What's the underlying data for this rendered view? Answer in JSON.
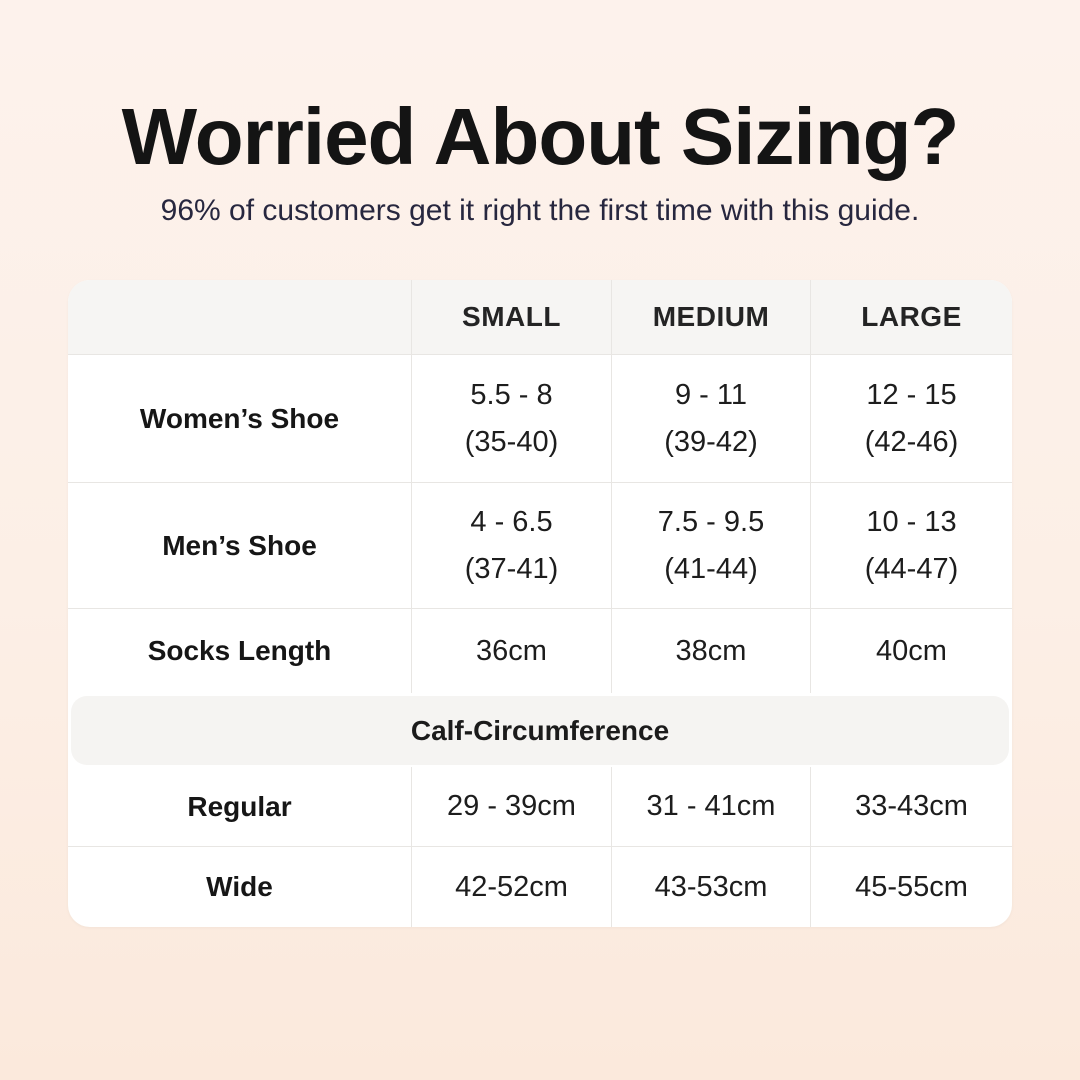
{
  "header": {
    "title": "Worried About Sizing?",
    "subtitle": "96% of customers get it right the first time with this guide."
  },
  "table": {
    "headers": {
      "small": "SMALL",
      "medium": "MEDIUM",
      "large": "LARGE"
    },
    "shoe_rows": [
      {
        "label": "Women’s Shoe",
        "cells": [
          {
            "l1": "5.5 - 8",
            "l2": "(35-40)"
          },
          {
            "l1": "9 - 11",
            "l2": "(39-42)"
          },
          {
            "l1": "12 - 15",
            "l2": "(42-46)"
          }
        ]
      },
      {
        "label": "Men’s Shoe",
        "cells": [
          {
            "l1": "4 - 6.5",
            "l2": "(37-41)"
          },
          {
            "l1": "7.5 - 9.5",
            "l2": "(41-44)"
          },
          {
            "l1": "10 - 13",
            "l2": "(44-47)"
          }
        ]
      }
    ],
    "socks_row": {
      "label": "Socks Length",
      "cells": [
        "36cm",
        "38cm",
        "40cm"
      ]
    },
    "section_title": "Calf-Circumference",
    "calf_rows": [
      {
        "label": "Regular",
        "cells": [
          "29 - 39cm",
          "31 - 41cm",
          "33-43cm"
        ]
      },
      {
        "label": "Wide",
        "cells": [
          "42-52cm",
          "43-53cm",
          "45-55cm"
        ]
      }
    ]
  },
  "chart_data": {
    "type": "table",
    "title": "Worried About Sizing?",
    "subtitle": "96% of customers get it right the first time with this guide.",
    "columns": [
      "",
      "SMALL",
      "MEDIUM",
      "LARGE"
    ],
    "rows": [
      [
        "Women’s Shoe",
        "5.5 - 8 (35-40)",
        "9 - 11 (39-42)",
        "12 - 15 (42-46)"
      ],
      [
        "Men’s Shoe",
        "4 - 6.5 (37-41)",
        "7.5 - 9.5 (41-44)",
        "10 - 13 (44-47)"
      ],
      [
        "Socks Length",
        "36cm",
        "38cm",
        "40cm"
      ],
      [
        "Calf-Circumference",
        "",
        "",
        ""
      ],
      [
        "Regular",
        "29 - 39cm",
        "31 - 41cm",
        "33-43cm"
      ],
      [
        "Wide",
        "42-52cm",
        "43-53cm",
        "45-55cm"
      ]
    ]
  },
  "colors": {
    "background_top": "#fdf2ec",
    "background_bottom": "#fbe9dc",
    "card": "#ffffff",
    "header_band": "#f6f5f3",
    "section_band": "#f5f4f2",
    "divider": "#e8e6e3",
    "title_text": "#141414",
    "subtitle_text": "#27273f",
    "table_text": "#1d1d1d"
  }
}
